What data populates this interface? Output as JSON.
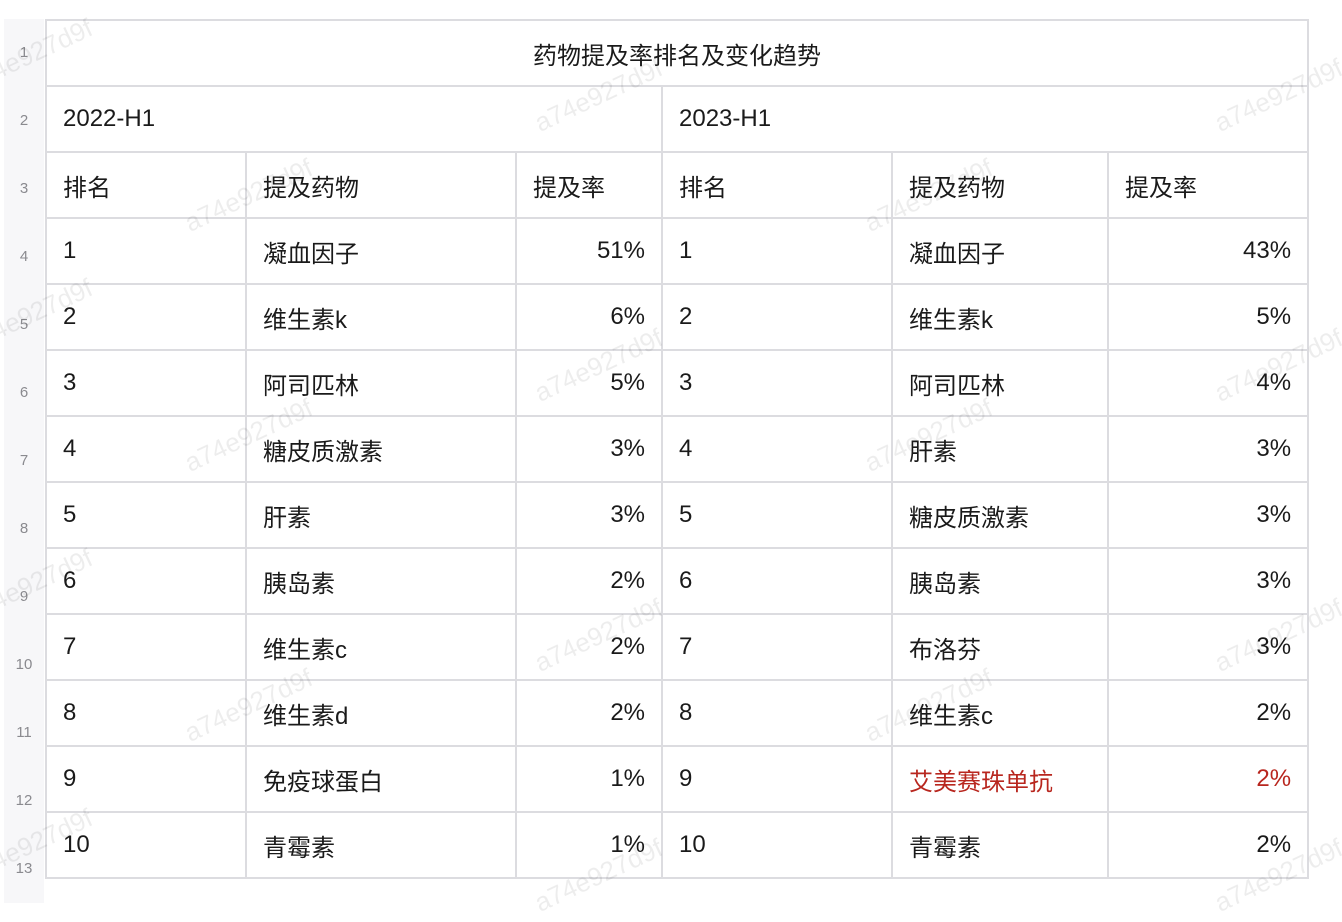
{
  "row_numbers": [
    "1",
    "2",
    "3",
    "4",
    "5",
    "6",
    "7",
    "8",
    "9",
    "10",
    "11",
    "12",
    "13"
  ],
  "title": "药物提及率排名及变化趋势",
  "periods": [
    "2022-H1",
    "2023-H1"
  ],
  "headers": [
    "排名",
    "提及药物",
    "提及率"
  ],
  "rows_2022": [
    [
      "1",
      "凝血因子",
      "51%"
    ],
    [
      "2",
      "维生素k",
      "6%"
    ],
    [
      "3",
      "阿司匹林",
      "5%"
    ],
    [
      "4",
      "糖皮质激素",
      "3%"
    ],
    [
      "5",
      "肝素",
      "3%"
    ],
    [
      "6",
      "胰岛素",
      "2%"
    ],
    [
      "7",
      "维生素c",
      "2%"
    ],
    [
      "8",
      "维生素d",
      "2%"
    ],
    [
      "9",
      "免疫球蛋白",
      "1%"
    ],
    [
      "10",
      "青霉素",
      "1%"
    ]
  ],
  "rows_2023": [
    [
      "1",
      "凝血因子",
      "43%"
    ],
    [
      "2",
      "维生素k",
      "5%"
    ],
    [
      "3",
      "阿司匹林",
      "4%"
    ],
    [
      "4",
      "肝素",
      "3%"
    ],
    [
      "5",
      "糖皮质激素",
      "3%"
    ],
    [
      "6",
      "胰岛素",
      "3%"
    ],
    [
      "7",
      "布洛芬",
      "3%"
    ],
    [
      "8",
      "维生素c",
      "2%"
    ],
    [
      "9",
      "艾美赛珠单抗",
      "2%"
    ],
    [
      "10",
      "青霉素",
      "2%"
    ]
  ],
  "highlight_row_2023": 8,
  "highlight_color": "#b8261e",
  "watermark": "a74e927d9f"
}
